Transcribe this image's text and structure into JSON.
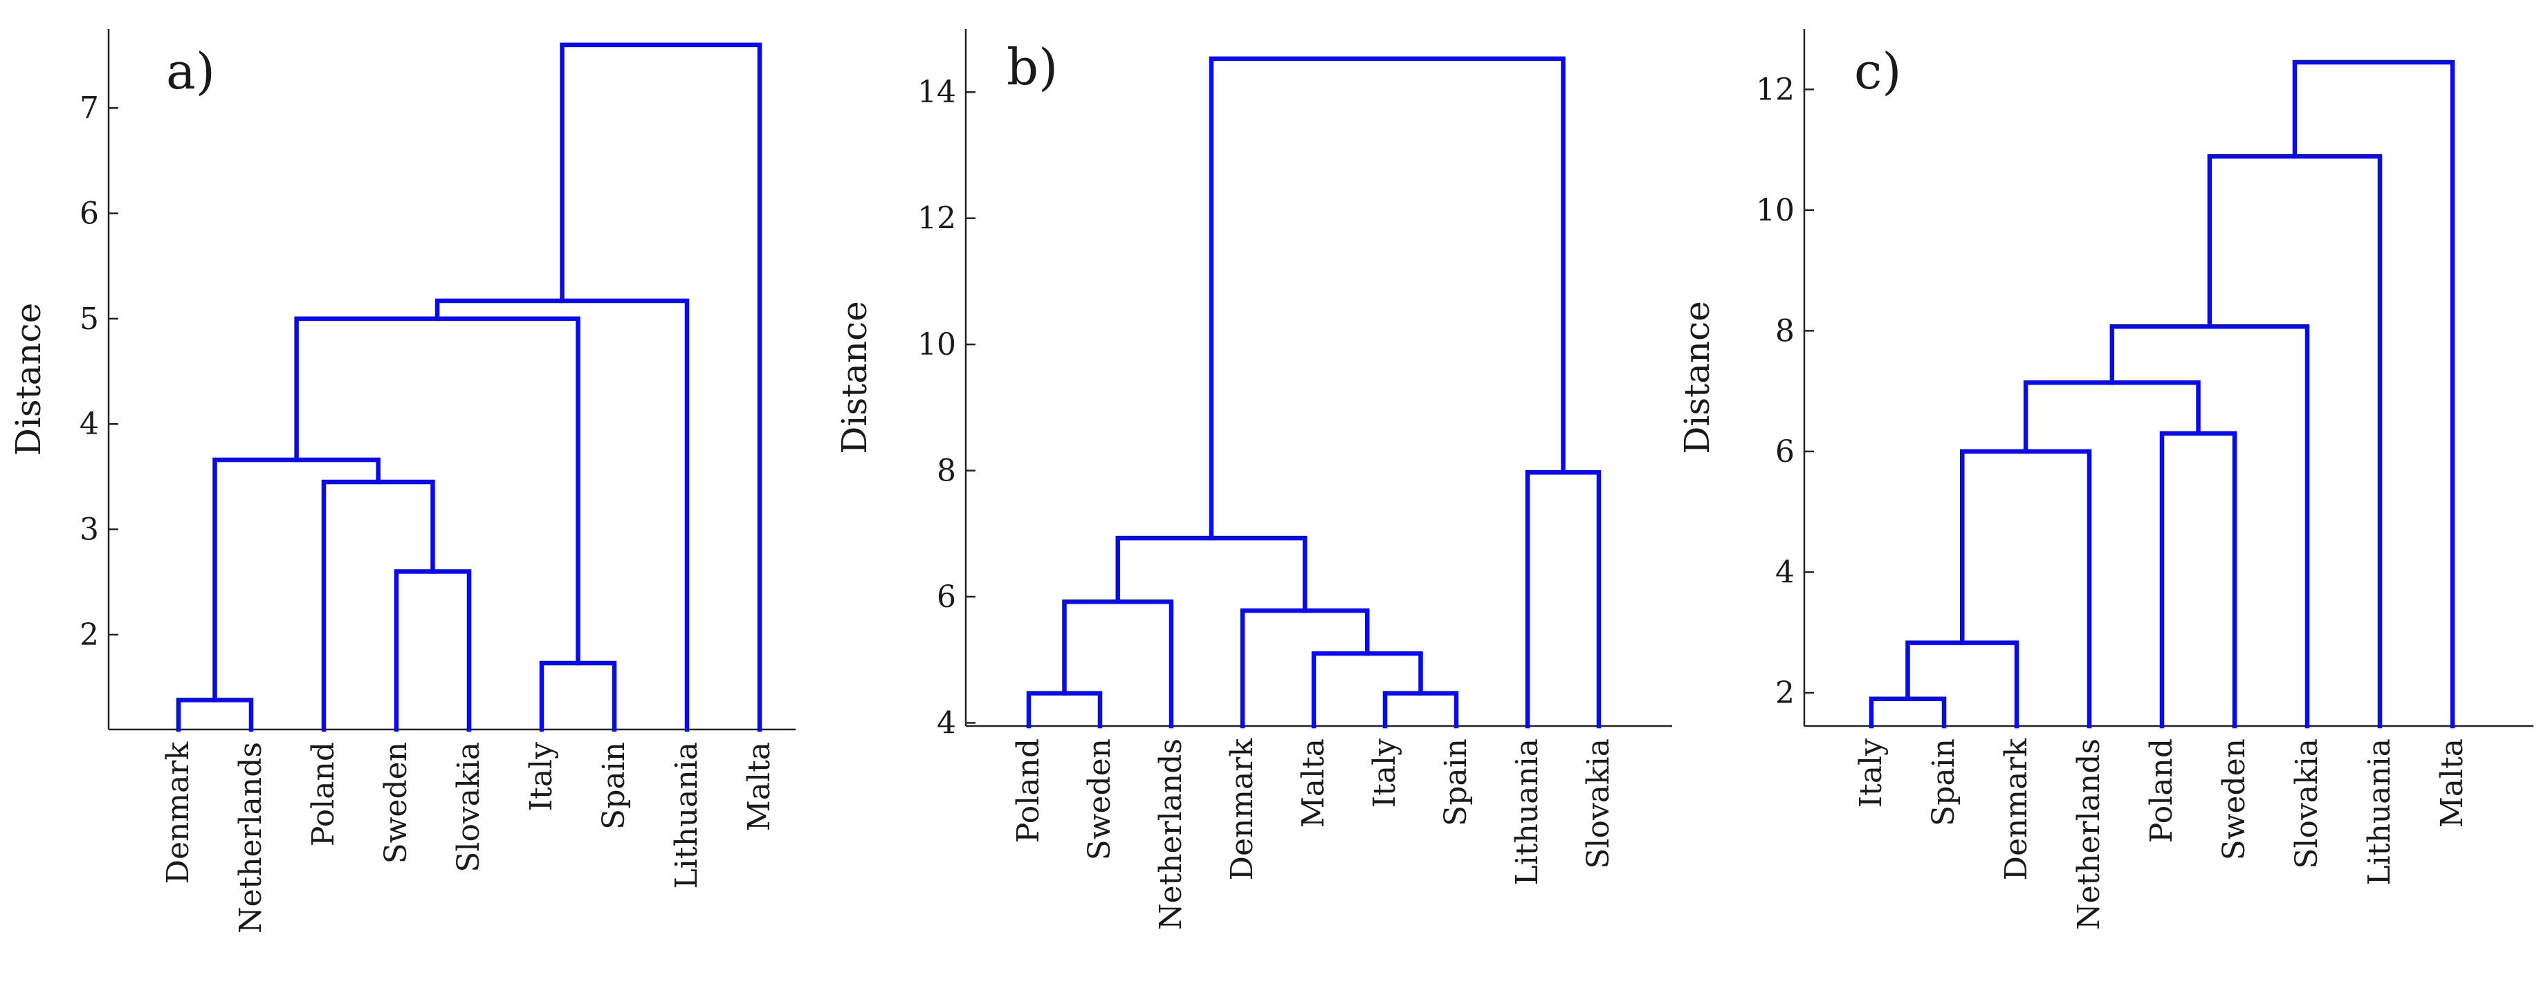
{
  "style": {
    "line_color": "#0a0aee",
    "axis_color": "#222222"
  },
  "chart_data": [
    {
      "type": "dendrogram",
      "panel_label": "a)",
      "ylabel": "Distance",
      "ylim": [
        1.1,
        7.75
      ],
      "yticks": [
        2,
        3,
        4,
        5,
        6,
        7
      ],
      "leaves": [
        "Denmark",
        "Netherlands",
        "Poland",
        "Sweden",
        "Slovakia",
        "Italy",
        "Spain",
        "Lithuania",
        "Malta"
      ],
      "merges": [
        {
          "a": "Denmark",
          "b": "Netherlands",
          "height": 1.38
        },
        {
          "a": "Sweden",
          "b": "Slovakia",
          "height": 2.6
        },
        {
          "a": "Italy",
          "b": "Spain",
          "height": 1.73
        },
        {
          "a": "Poland",
          "b": "M2",
          "height": 3.45
        },
        {
          "a": "M1",
          "b": "M4",
          "height": 3.66
        },
        {
          "a": "M5",
          "b": "M3",
          "height": 5.0
        },
        {
          "a": "M6",
          "b": "Lithuania",
          "height": 5.17
        },
        {
          "a": "M7",
          "b": "Malta",
          "height": 7.6
        }
      ]
    },
    {
      "type": "dendrogram",
      "panel_label": "b)",
      "ylabel": "Distance",
      "ylim": [
        3.95,
        15.0
      ],
      "yticks": [
        4,
        6,
        8,
        10,
        12,
        14
      ],
      "leaves": [
        "Poland",
        "Sweden",
        "Netherlands",
        "Denmark",
        "Malta",
        "Italy",
        "Spain",
        "Lithuania",
        "Slovakia"
      ],
      "merges": [
        {
          "a": "Poland",
          "b": "Sweden",
          "height": 4.47
        },
        {
          "a": "Italy",
          "b": "Spain",
          "height": 4.47
        },
        {
          "a": "Malta",
          "b": "M2",
          "height": 5.1
        },
        {
          "a": "Denmark",
          "b": "M3",
          "height": 5.78
        },
        {
          "a": "M1",
          "b": "Netherlands",
          "height": 5.92
        },
        {
          "a": "M5",
          "b": "M4",
          "height": 6.93
        },
        {
          "a": "Lithuania",
          "b": "Slovakia",
          "height": 7.97
        },
        {
          "a": "M6",
          "b": "M7",
          "height": 14.53
        }
      ]
    },
    {
      "type": "dendrogram",
      "panel_label": "c)",
      "ylabel": "Distance",
      "ylim": [
        1.45,
        13.0
      ],
      "yticks": [
        2,
        4,
        6,
        8,
        10,
        12
      ],
      "leaves": [
        "Italy",
        "Spain",
        "Denmark",
        "Netherlands",
        "Poland",
        "Sweden",
        "Slovakia",
        "Lithuania",
        "Malta"
      ],
      "merges": [
        {
          "a": "Italy",
          "b": "Spain",
          "height": 1.9
        },
        {
          "a": "M1",
          "b": "Denmark",
          "height": 2.83
        },
        {
          "a": "M2",
          "b": "Netherlands",
          "height": 6.0
        },
        {
          "a": "Poland",
          "b": "Sweden",
          "height": 6.3
        },
        {
          "a": "M3",
          "b": "M4",
          "height": 7.14
        },
        {
          "a": "M5",
          "b": "Slovakia",
          "height": 8.07
        },
        {
          "a": "M6",
          "b": "Lithuania",
          "height": 10.89
        },
        {
          "a": "M7",
          "b": "Malta",
          "height": 12.45
        }
      ]
    }
  ]
}
